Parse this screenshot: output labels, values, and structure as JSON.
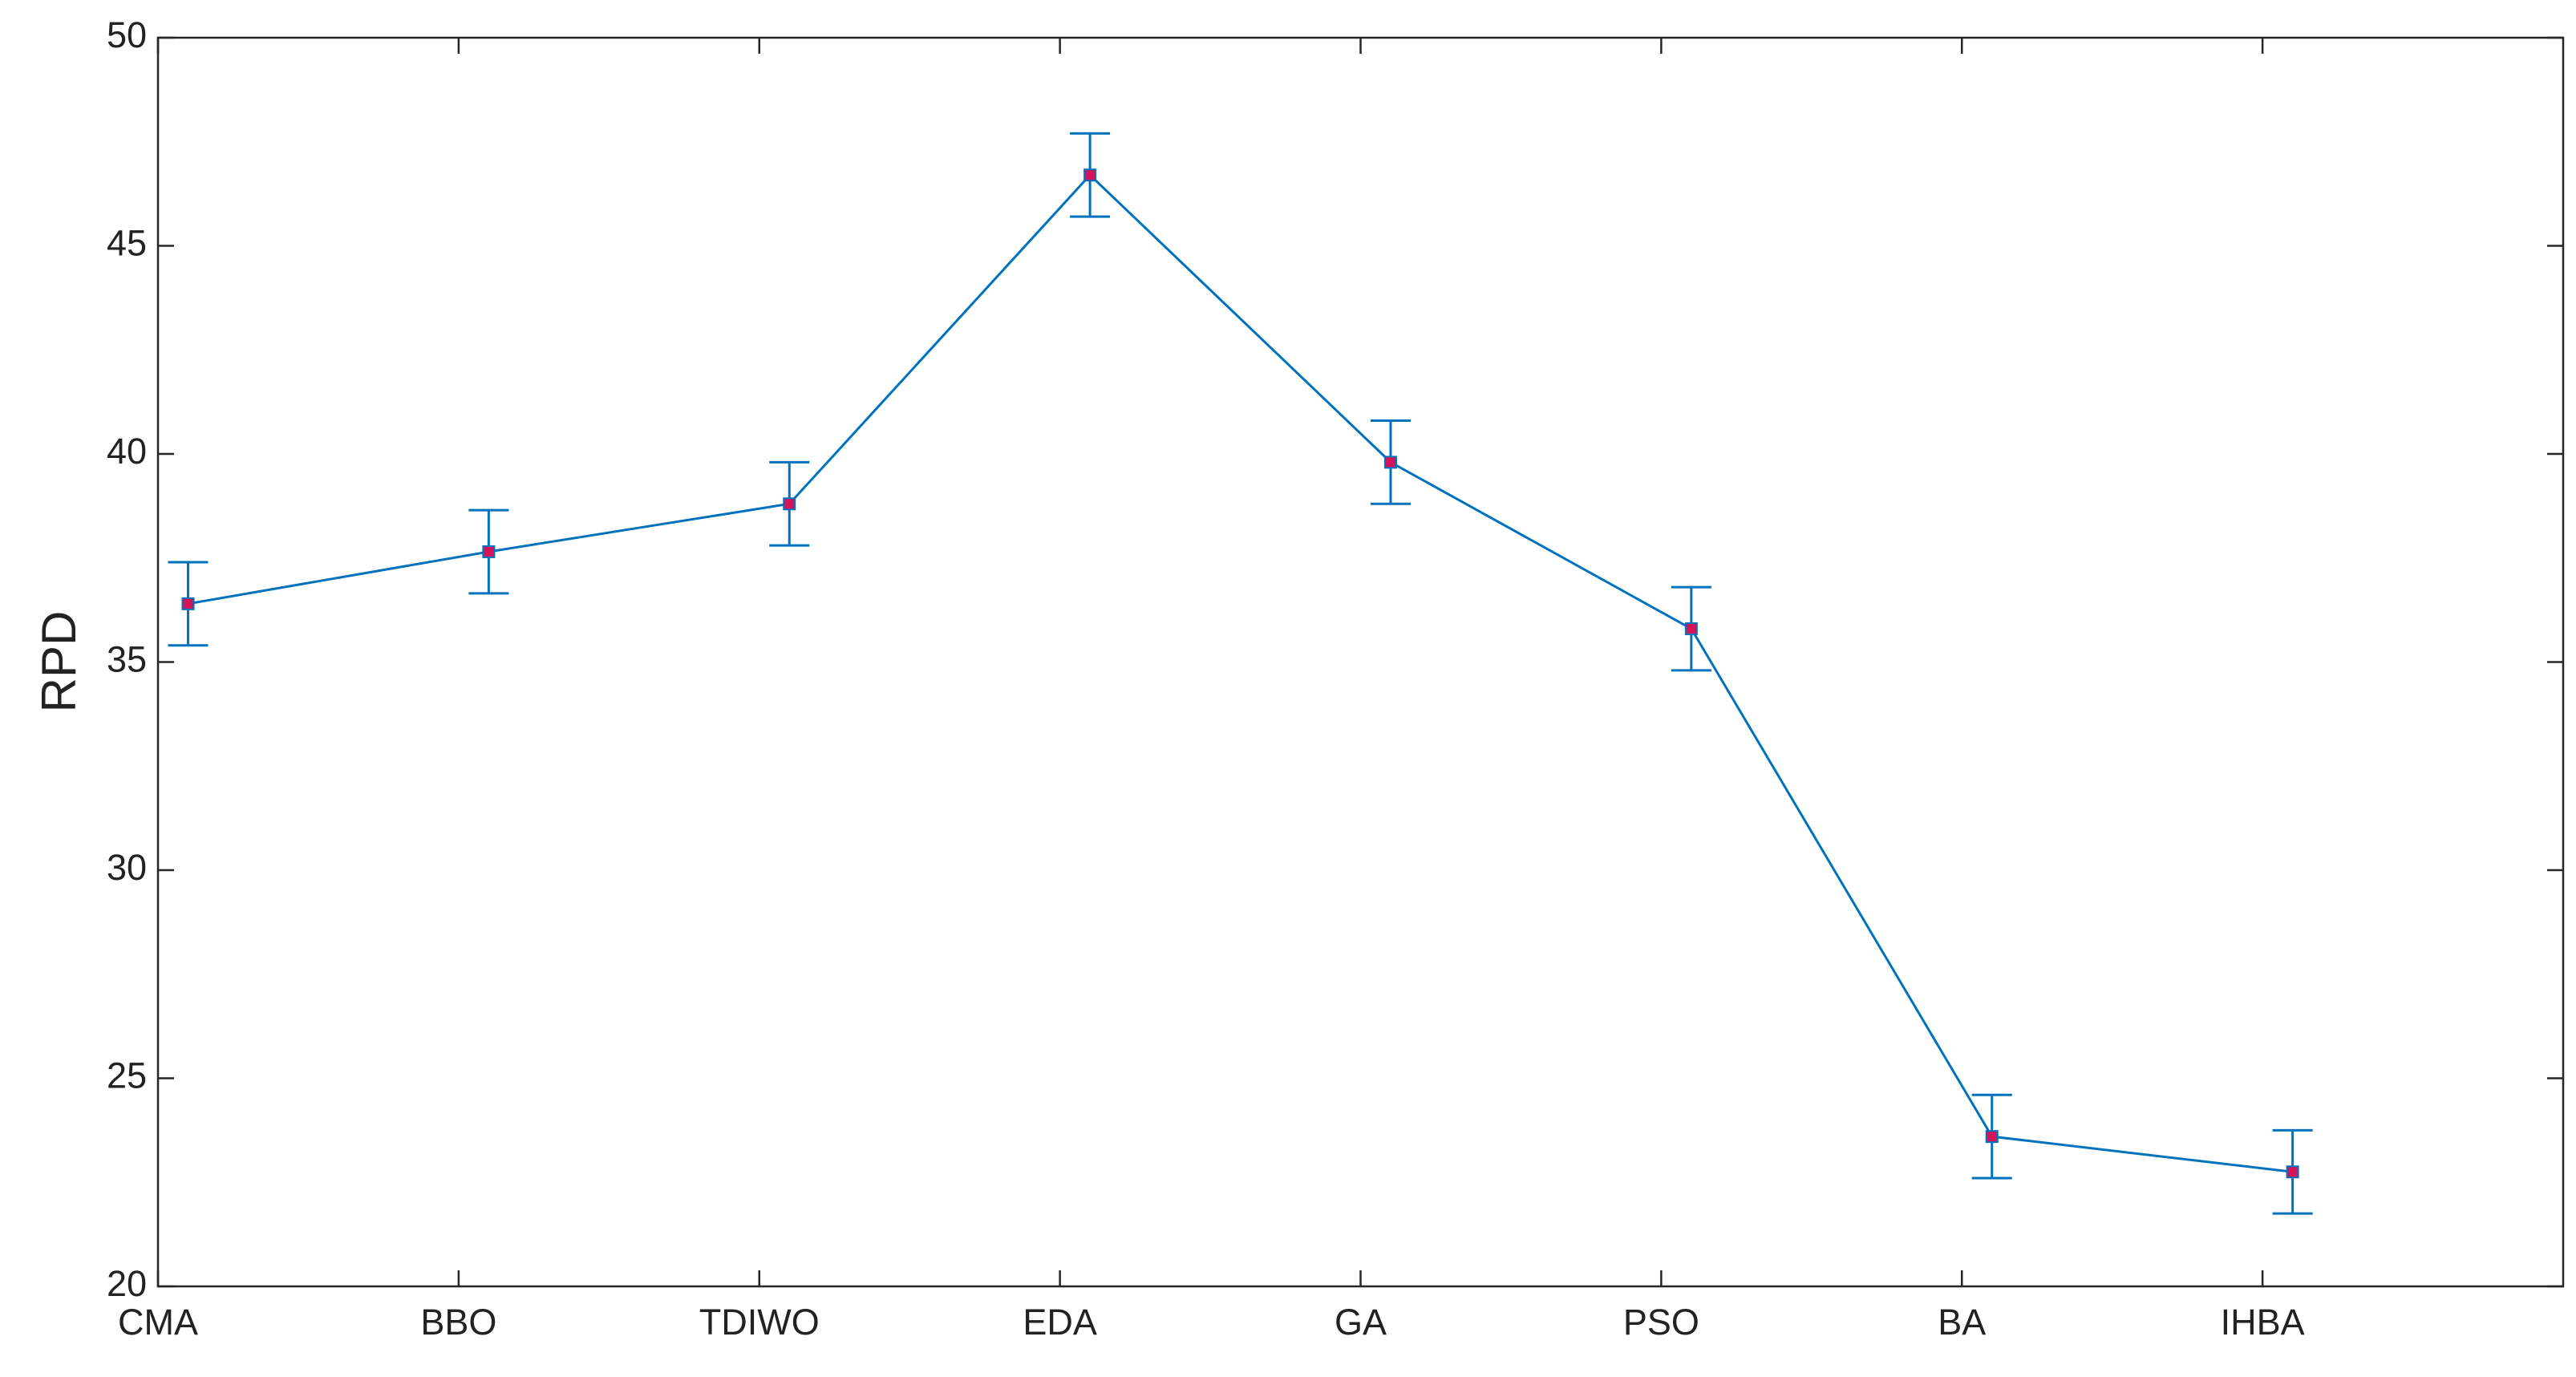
{
  "chart_data": {
    "type": "line",
    "ylabel": "RPD",
    "x": [
      1.1,
      2.1,
      3.1,
      4.1,
      5.1,
      6.1,
      7.1,
      8.1
    ],
    "values": [
      36.4,
      37.65,
      38.8,
      46.7,
      39.8,
      35.8,
      23.6,
      22.75
    ],
    "errors": [
      1,
      1,
      1,
      1,
      1,
      1,
      1,
      1
    ],
    "color": "#0072bd",
    "marker_color": "#d4145a",
    "xlim": [
      1,
      9
    ],
    "xticks": [
      {
        "value": 1,
        "label": "CMA"
      },
      {
        "value": 2,
        "label": "BBO"
      },
      {
        "value": 3,
        "label": "TDIWO"
      },
      {
        "value": 4,
        "label": "EDA"
      },
      {
        "value": 5,
        "label": "GA"
      },
      {
        "value": 6,
        "label": "PSO"
      },
      {
        "value": 7,
        "label": "BA"
      },
      {
        "value": 8,
        "label": "IHBA"
      }
    ],
    "ylim": [
      20,
      50
    ],
    "yticks": [
      20,
      25,
      30,
      35,
      40,
      45,
      50
    ],
    "grid": false
  }
}
